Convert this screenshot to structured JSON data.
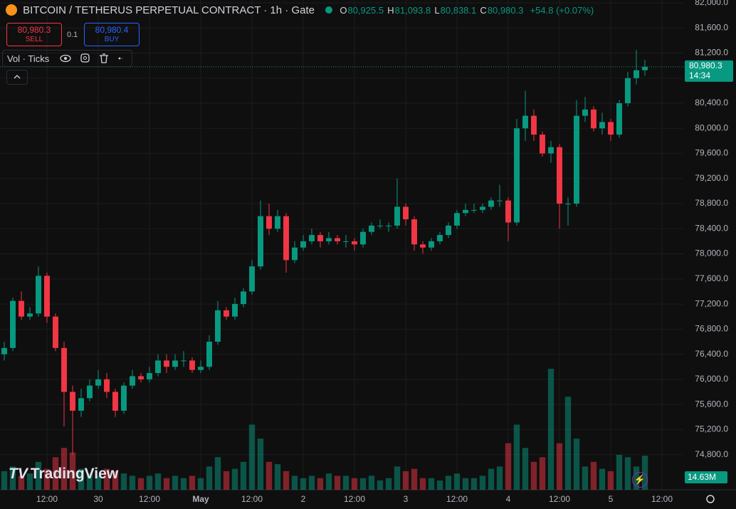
{
  "header": {
    "symbol": "BITCOIN / TETHERUS PERPETUAL CONTRACT · 1h · Gate",
    "o_label": "O",
    "o": "80,925.5",
    "h_label": "H",
    "h": "81,093.8",
    "l_label": "L",
    "l": "80,838.1",
    "c_label": "C",
    "c": "80,980.3",
    "change": "+54.8 (+0.07%)"
  },
  "trade": {
    "sell_price": "80,980.3",
    "sell": "SELL",
    "qty": "0.1",
    "buy_price": "80,980.4",
    "buy": "BUY"
  },
  "indicator": {
    "label": "Vol · Ticks"
  },
  "price_tag": {
    "price": "80,980.3",
    "countdown": "14:34"
  },
  "volume_tag": "14.63M",
  "brand": "TradingView",
  "chart_data": {
    "type": "candlestick",
    "up_color": "#089981",
    "down_color": "#f23645",
    "grid": true,
    "open": [
      76400,
      76500,
      77250,
      77000,
      77050,
      77650,
      77000,
      76500,
      75800,
      75500,
      75700,
      75900,
      76000,
      75800,
      75500,
      75900,
      76050,
      76000,
      76100,
      76300,
      76200,
      76300,
      76300,
      76150,
      76200,
      76600,
      77100,
      77000,
      77200,
      77400,
      77800,
      78600,
      78400,
      78600,
      77900,
      78100,
      78200,
      78300,
      78200,
      78250,
      78200,
      78200,
      78150,
      78350,
      78450,
      78450,
      78450,
      78750,
      78550,
      78150,
      78100,
      78200,
      78300,
      78450,
      78650,
      78700,
      78700,
      78750,
      78850,
      78850,
      78500,
      80000,
      80200,
      79900,
      79600,
      79700,
      78800,
      78800,
      80200,
      80300,
      80000,
      80100,
      79900,
      80400,
      80800,
      80925.5
    ],
    "high": [
      76600,
      77300,
      77400,
      77150,
      77800,
      77700,
      77050,
      76600,
      75900,
      75850,
      76000,
      76150,
      76100,
      75850,
      75950,
      76150,
      76100,
      76200,
      76400,
      76400,
      76400,
      76450,
      76350,
      76300,
      76700,
      77250,
      77150,
      77300,
      77450,
      77900,
      78850,
      78800,
      78700,
      78650,
      78200,
      78300,
      78400,
      78350,
      78350,
      78300,
      78300,
      78250,
      78400,
      78500,
      78550,
      78500,
      79200,
      78800,
      78600,
      78200,
      78250,
      78350,
      78500,
      78700,
      78800,
      78800,
      78800,
      78900,
      79100,
      78900,
      80150,
      80600,
      80300,
      79950,
      79800,
      79750,
      78900,
      80450,
      80500,
      80350,
      80250,
      80150,
      80450,
      80900,
      81250,
      81093.8
    ],
    "low": [
      76300,
      76450,
      76950,
      76950,
      77000,
      76900,
      76450,
      75250,
      74800,
      75400,
      75650,
      75850,
      75700,
      75400,
      75450,
      75850,
      75950,
      75950,
      76050,
      76100,
      76150,
      76200,
      76100,
      76100,
      76150,
      76550,
      76950,
      76950,
      77150,
      77350,
      77750,
      78300,
      78350,
      77700,
      77850,
      78050,
      78150,
      78100,
      78150,
      78150,
      78100,
      78050,
      78100,
      78300,
      78400,
      78350,
      78400,
      78450,
      78050,
      78000,
      78050,
      78150,
      78250,
      78400,
      78600,
      78650,
      78650,
      78700,
      78750,
      78200,
      78450,
      79800,
      79800,
      79550,
      79450,
      78400,
      78450,
      78750,
      80100,
      79950,
      79900,
      79800,
      79850,
      80350,
      80700,
      80838.1
    ],
    "close": [
      76500,
      77250,
      77000,
      77050,
      77650,
      77000,
      76500,
      75800,
      75500,
      75700,
      75900,
      76000,
      75800,
      75500,
      75900,
      76050,
      76000,
      76100,
      76300,
      76200,
      76300,
      76300,
      76150,
      76200,
      76600,
      77100,
      77000,
      77200,
      77400,
      77800,
      78600,
      78400,
      78600,
      77900,
      78100,
      78200,
      78300,
      78200,
      78250,
      78200,
      78200,
      78150,
      78350,
      78450,
      78450,
      78450,
      78750,
      78550,
      78150,
      78100,
      78200,
      78300,
      78450,
      78650,
      78700,
      78700,
      78750,
      78850,
      78850,
      78500,
      80000,
      80200,
      79900,
      79600,
      79700,
      78800,
      78800,
      80200,
      80300,
      80000,
      80100,
      79900,
      80400,
      80800,
      80925.5,
      80980.3
    ],
    "volume": [
      8,
      10,
      6,
      7,
      12,
      9,
      14,
      18,
      16,
      9,
      7,
      6,
      9,
      8,
      7,
      6,
      5,
      6,
      7,
      5,
      6,
      5,
      6,
      5,
      10,
      14,
      8,
      9,
      12,
      28,
      22,
      12,
      11,
      8,
      6,
      5,
      6,
      5,
      7,
      6,
      6,
      5,
      5,
      6,
      4,
      5,
      10,
      8,
      9,
      5,
      5,
      4,
      6,
      7,
      5,
      5,
      6,
      9,
      10,
      20,
      28,
      18,
      12,
      14,
      52,
      20,
      40,
      22,
      10,
      12,
      9,
      8,
      15,
      14,
      10,
      14.63
    ],
    "xlim": [
      -0.5,
      79.5
    ],
    "xticks": [
      {
        "value": 5,
        "label": "12:00"
      },
      {
        "value": 11,
        "label": "30"
      },
      {
        "value": 17,
        "label": "12:00"
      },
      {
        "value": 23,
        "label": "May"
      },
      {
        "value": 29,
        "label": "12:00"
      },
      {
        "value": 35,
        "label": "2"
      },
      {
        "value": 41,
        "label": "12:00"
      },
      {
        "value": 47,
        "label": "3"
      },
      {
        "value": 53,
        "label": "12:00"
      },
      {
        "value": 59,
        "label": "4"
      },
      {
        "value": 65,
        "label": "12:00"
      },
      {
        "value": 71,
        "label": "5"
      },
      {
        "value": 77,
        "label": "12:00"
      }
    ],
    "ylim": [
      74240,
      82045
    ],
    "yticks": [
      {
        "value": 82000,
        "label": "82,000.0"
      },
      {
        "value": 81600,
        "label": "81,600.0"
      },
      {
        "value": 81200,
        "label": "81,200.0"
      },
      {
        "value": 80800,
        "label": "80,800.0"
      },
      {
        "value": 80400,
        "label": "80,400.0"
      },
      {
        "value": 80000,
        "label": "80,000.0"
      },
      {
        "value": 79600,
        "label": "79,600.0"
      },
      {
        "value": 79200,
        "label": "79,200.0"
      },
      {
        "value": 78800,
        "label": "78,800.0"
      },
      {
        "value": 78400,
        "label": "78,400.0"
      },
      {
        "value": 78000,
        "label": "78,000.0"
      },
      {
        "value": 77600,
        "label": "77,600.0"
      },
      {
        "value": 77200,
        "label": "77,200.0"
      },
      {
        "value": 76800,
        "label": "76,800.0"
      },
      {
        "value": 76400,
        "label": "76,400.0"
      },
      {
        "value": 76000,
        "label": "76,000.0"
      },
      {
        "value": 75600,
        "label": "75,600.0"
      },
      {
        "value": 75200,
        "label": "75,200.0"
      },
      {
        "value": 74800,
        "label": "74,800.0"
      }
    ]
  }
}
